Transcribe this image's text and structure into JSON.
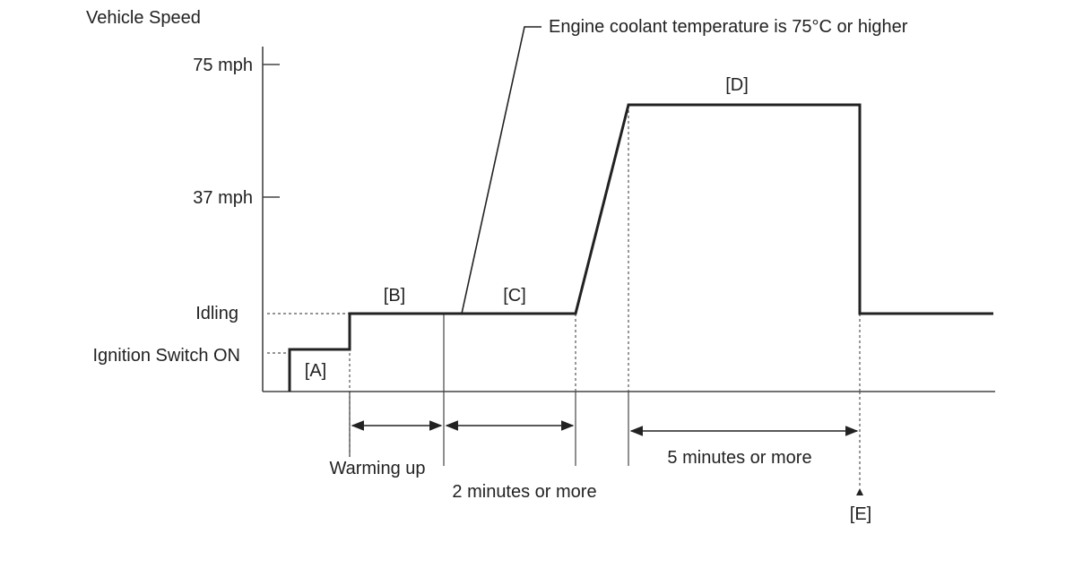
{
  "y_axis": {
    "title": "Vehicle Speed",
    "labels": {
      "speed_75": "75 mph",
      "speed_37": "37 mph",
      "idling": "Idling",
      "ignition_on": "Ignition Switch ON"
    }
  },
  "segments": {
    "a": "[A]",
    "b": "[B]",
    "c": "[C]",
    "d": "[D]",
    "e": "[E]"
  },
  "annotation": {
    "coolant": "Engine coolant temperature is 75°C or higher"
  },
  "durations": {
    "warming_up": "Warming up",
    "two_minutes": "2 minutes or more",
    "five_minutes": "5 minutes or more"
  },
  "colors": {
    "line": "#222222",
    "axis": "#444444",
    "background": "#ffffff"
  }
}
